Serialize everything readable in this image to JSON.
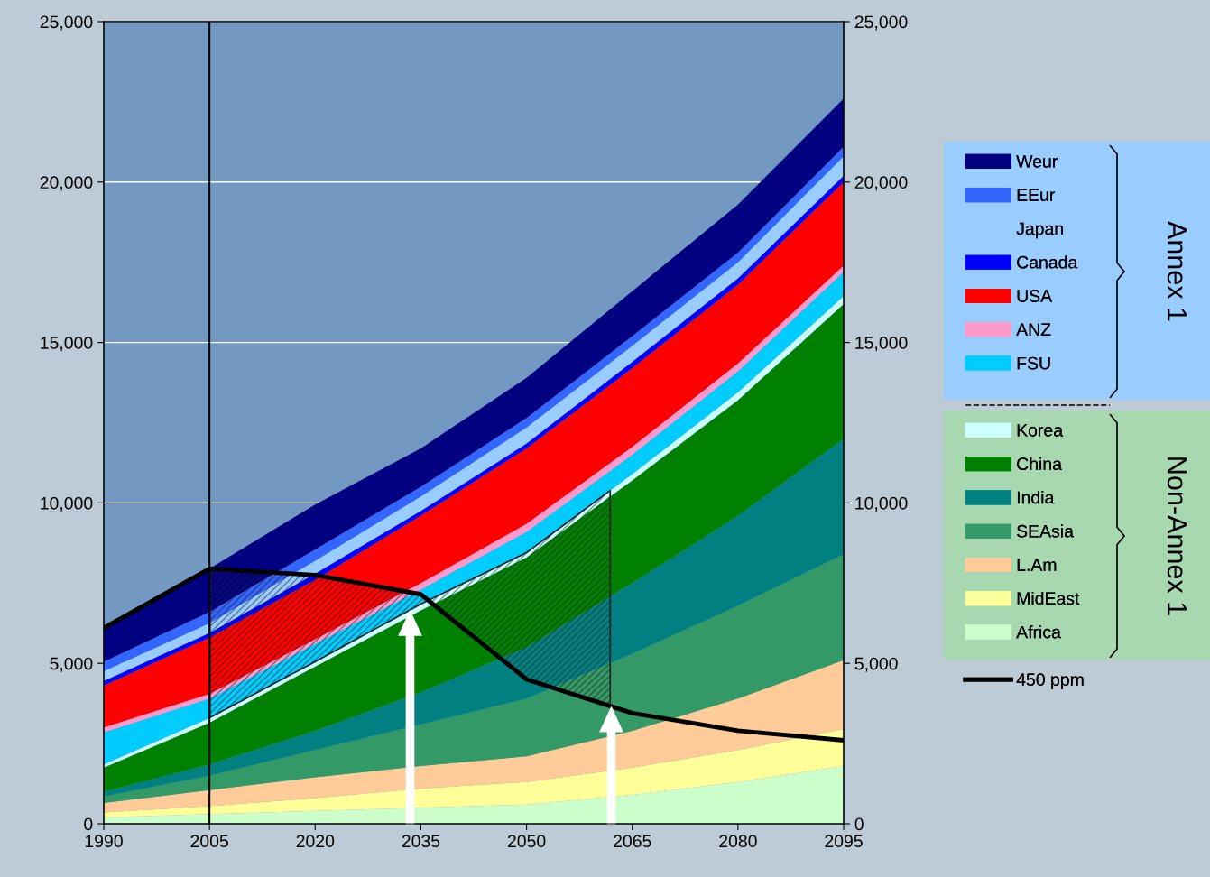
{
  "chart_data": {
    "type": "area",
    "stacked": true,
    "x": [
      1990,
      2005,
      2020,
      2035,
      2050,
      2065,
      2080,
      2095
    ],
    "series": [
      {
        "name": "Africa",
        "color": "#ccffcc",
        "values": [
          200,
          300,
          400,
          500,
          600,
          900,
          1300,
          1800
        ]
      },
      {
        "name": "MidEast",
        "color": "#ffff99",
        "values": [
          150,
          250,
          400,
          600,
          700,
          850,
          1000,
          1150
        ]
      },
      {
        "name": "L.Am",
        "color": "#ffcc99",
        "values": [
          300,
          500,
          650,
          700,
          800,
          1150,
          1600,
          2150
        ]
      },
      {
        "name": "SEAsia",
        "color": "#339966",
        "values": [
          200,
          450,
          850,
          1300,
          1800,
          2400,
          2900,
          3300
        ]
      },
      {
        "name": "India",
        "color": "#008080",
        "values": [
          150,
          350,
          600,
          1000,
          1600,
          2200,
          2800,
          3600
        ]
      },
      {
        "name": "China",
        "color": "#008000",
        "values": [
          750,
          1300,
          2000,
          2550,
          2800,
          3200,
          3600,
          4200
        ]
      },
      {
        "name": "Korea",
        "color": "#ccffff",
        "values": [
          100,
          150,
          150,
          200,
          150,
          200,
          250,
          250
        ]
      },
      {
        "name": "FSU",
        "color": "#00ccff",
        "values": [
          1000,
          600,
          550,
          450,
          650,
          600,
          650,
          750
        ]
      },
      {
        "name": "ANZ",
        "color": "#ff99cc",
        "values": [
          150,
          150,
          150,
          200,
          250,
          250,
          250,
          200
        ]
      },
      {
        "name": "USA",
        "color": "#ff0000",
        "values": [
          1300,
          1750,
          1850,
          2100,
          2350,
          2450,
          2450,
          2600
        ]
      },
      {
        "name": "Canada",
        "color": "#0000ff",
        "values": [
          150,
          150,
          200,
          150,
          150,
          200,
          200,
          200
        ]
      },
      {
        "name": "Japan",
        "color": "#99ccff",
        "values": [
          300,
          300,
          400,
          450,
          500,
          500,
          500,
          600
        ]
      },
      {
        "name": "EEur",
        "color": "#3366ff",
        "values": [
          300,
          350,
          350,
          300,
          300,
          300,
          300,
          300
        ]
      },
      {
        "name": "Weur",
        "color": "#000080",
        "values": [
          1050,
          1350,
          1400,
          1200,
          1250,
          1400,
          1500,
          1500
        ]
      },
      {
        "name": "450 ppm",
        "type": "line",
        "color": "#000000",
        "line_style": "solid",
        "x": [
          1990,
          2005,
          2020,
          2035,
          2050,
          2065,
          2080,
          2095
        ],
        "values": [
          6100,
          7950,
          7750,
          7150,
          4500,
          3450,
          2900,
          2600
        ]
      }
    ],
    "xlim": [
      1990,
      2095
    ],
    "xticks": [
      1990,
      2005,
      2020,
      2035,
      2050,
      2065,
      2080,
      2095
    ],
    "ylim": [
      0,
      25000
    ],
    "yticks": [
      {
        "value": 0,
        "label": "0"
      },
      {
        "value": 5000,
        "label": "5,000"
      },
      {
        "value": 10000,
        "label": "10,000"
      },
      {
        "value": 15000,
        "label": "15,000"
      },
      {
        "value": 20000,
        "label": "20,000"
      },
      {
        "value": 25000,
        "label": "25,000"
      }
    ],
    "y2lim": [
      0,
      25000
    ],
    "y2ticks": [
      {
        "value": 0,
        "label": "0"
      },
      {
        "value": 5000,
        "label": "5,000"
      },
      {
        "value": 10000,
        "label": "10,000"
      },
      {
        "value": 15000,
        "label": "15,000"
      },
      {
        "value": 20000,
        "label": "20,000"
      },
      {
        "value": 25000,
        "label": "25,000"
      }
    ],
    "ref_lines": [
      {
        "axis": "x",
        "value": 2005,
        "color": "#000000",
        "line_style": "solid"
      }
    ],
    "grid": "y",
    "legend": "right",
    "annotations": [
      "Annex 1",
      "Non-Annex 1"
    ]
  }
}
